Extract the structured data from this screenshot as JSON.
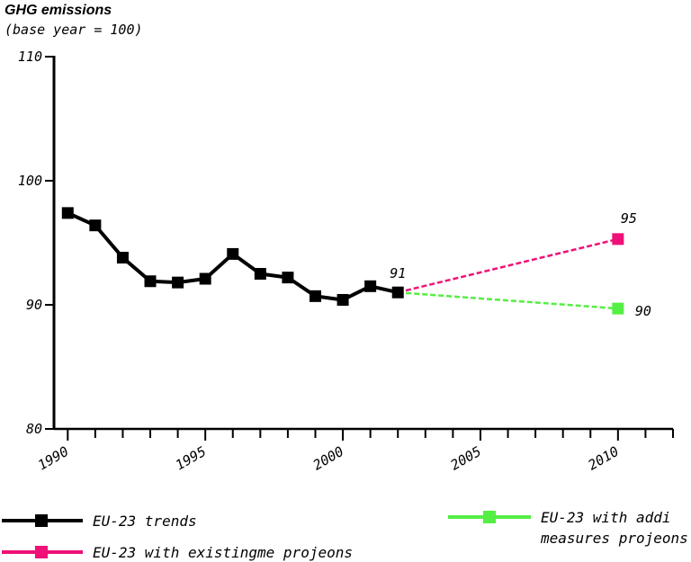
{
  "chart_data": {
    "type": "line",
    "title": "GHG emissions",
    "subtitle": "(base year = 100)",
    "xlim": [
      1989.5,
      2012
    ],
    "ylim": [
      80,
      110
    ],
    "y_ticks": [
      80,
      90,
      100,
      110
    ],
    "x_ticks": [
      1990,
      1995,
      2000,
      2005,
      2010
    ],
    "grid": false,
    "legend_position": "bottom",
    "series": [
      {
        "name": "EU-23 trends",
        "color": "#000000",
        "dashed": false,
        "x": [
          1990,
          1991,
          1992,
          1993,
          1994,
          1995,
          1996,
          1997,
          1998,
          1999,
          2000,
          2001,
          2002
        ],
        "y": [
          97.4,
          96.4,
          93.8,
          91.9,
          91.8,
          92.1,
          94.1,
          92.5,
          92.2,
          90.7,
          90.4,
          91.5,
          91.0
        ]
      },
      {
        "name": "EU-23 with existing measures projections",
        "legend_display": "EU-23 with existingme projeons",
        "color": "#ee1177",
        "dashed": true,
        "x": [
          2002,
          2010
        ],
        "y": [
          91.0,
          95.3
        ]
      },
      {
        "name": "EU-23 with additional measures projections",
        "legend_display_lines": [
          "EU-23 with addi",
          "measures projeons"
        ],
        "color": "#55ee44",
        "dashed": true,
        "x": [
          2002,
          2010
        ],
        "y": [
          91.0,
          89.7
        ]
      }
    ],
    "data_labels": [
      {
        "text": "91",
        "x": 2002,
        "y": 91.0
      },
      {
        "text": "95",
        "x": 2010,
        "y": 95.3
      },
      {
        "text": "90",
        "x": 2010,
        "y": 89.7
      }
    ]
  }
}
